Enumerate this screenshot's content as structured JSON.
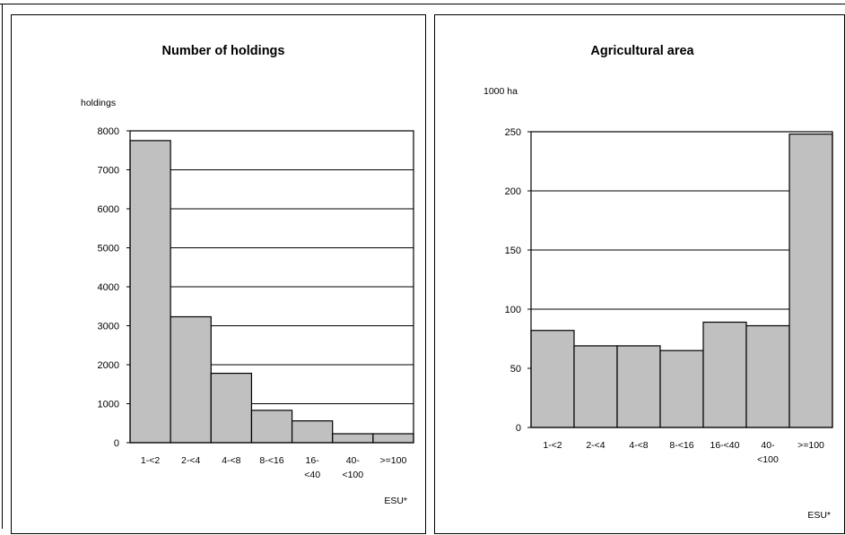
{
  "chart_data": [
    {
      "type": "bar",
      "title": "Number of holdings",
      "ylabel": "holdings",
      "xlabel": "ESU*",
      "categories": [
        "1-<2",
        "2-<4",
        "4-<8",
        "8-<16",
        "16-<40",
        "40-<100",
        ">=100"
      ],
      "category_lines": [
        [
          "1-<2"
        ],
        [
          "2-<4"
        ],
        [
          "4-<8"
        ],
        [
          "8-<16"
        ],
        [
          "16-",
          "<40"
        ],
        [
          "40-",
          "<100"
        ],
        [
          ">=100"
        ]
      ],
      "values": [
        7750,
        3230,
        1780,
        830,
        560,
        230,
        230
      ],
      "ylim": [
        0,
        8000
      ],
      "yticks": [
        "0",
        "1000",
        "2000",
        "3000",
        "4000",
        "5000",
        "6000",
        "7000",
        "8000"
      ],
      "grid": true,
      "bar_color": "#c0c0c0"
    },
    {
      "type": "bar",
      "title": "Agricultural area",
      "ylabel": "1000 ha",
      "xlabel": "ESU*",
      "categories": [
        "1-<2",
        "2-<4",
        "4-<8",
        "8-<16",
        "16-<40",
        "40-<100",
        ">=100"
      ],
      "category_lines": [
        [
          "1-<2"
        ],
        [
          "2-<4"
        ],
        [
          "4-<8"
        ],
        [
          "8-<16"
        ],
        [
          "16-<40"
        ],
        [
          "40-",
          "<100"
        ],
        [
          ">=100"
        ]
      ],
      "values": [
        82,
        69,
        69,
        65,
        89,
        86,
        248
      ],
      "ylim": [
        0,
        250
      ],
      "yticks": [
        "0",
        "50",
        "100",
        "150",
        "200",
        "250"
      ],
      "grid": true,
      "bar_color": "#c0c0c0"
    }
  ]
}
